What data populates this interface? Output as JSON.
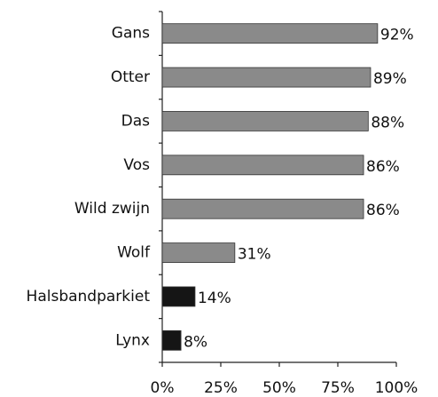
{
  "chart_data": {
    "type": "hbar",
    "categories": [
      "Gans",
      "Otter",
      "Das",
      "Vos",
      "Wild zwijn",
      "Wolf",
      "Halsbandparkiet",
      "Lynx"
    ],
    "values": [
      92,
      89,
      88,
      86,
      86,
      31,
      14,
      8
    ],
    "value_labels": [
      "92%",
      "89%",
      "88%",
      "86%",
      "86%",
      "31%",
      "14%",
      "8%"
    ],
    "colors": [
      "#8a8a8a",
      "#8a8a8a",
      "#8a8a8a",
      "#8a8a8a",
      "#8a8a8a",
      "#8a8a8a",
      "#151515",
      "#151515"
    ],
    "xlim": [
      0,
      100
    ],
    "xticks": [
      {
        "value": 0,
        "label": "0%"
      },
      {
        "value": 25,
        "label": "25%"
      },
      {
        "value": 50,
        "label": "50%"
      },
      {
        "value": 75,
        "label": "75%"
      },
      {
        "value": 100,
        "label": "100%"
      }
    ]
  }
}
